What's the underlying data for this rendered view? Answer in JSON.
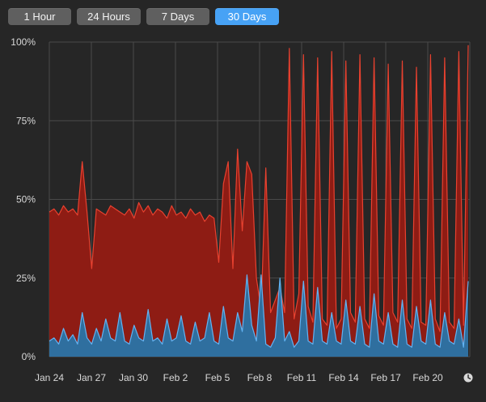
{
  "range_buttons": [
    {
      "label": "1 Hour",
      "active": false
    },
    {
      "label": "24 Hours",
      "active": false
    },
    {
      "label": "7 Days",
      "active": false
    },
    {
      "label": "30 Days",
      "active": true
    }
  ],
  "colors": {
    "background": "#262626",
    "grid": "#4a4a4a",
    "red_fill": "#8e1c14",
    "red_line": "#e8412f",
    "blue_fill": "#2f6f9f",
    "blue_line": "#62b3f2",
    "accent": "#47a2f5"
  },
  "clock_icon": "clock-icon",
  "chart_data": {
    "type": "area",
    "title": "",
    "xlabel": "",
    "ylabel": "",
    "ylim": [
      0,
      100
    ],
    "x_ticks": [
      "Jan 24",
      "Jan 27",
      "Jan 30",
      "Feb 2",
      "Feb 5",
      "Feb 8",
      "Feb 11",
      "Feb 14",
      "Feb 17",
      "Feb 20"
    ],
    "y_ticks": [
      "0%",
      "25%",
      "50%",
      "75%",
      "100%"
    ],
    "grid": true,
    "legend": "none",
    "series": [
      {
        "color": "#e8412f",
        "values": [
          46,
          47,
          45,
          48,
          46,
          47,
          45,
          62,
          46,
          28,
          47,
          46,
          45,
          48,
          47,
          46,
          45,
          47,
          44,
          49,
          46,
          48,
          45,
          47,
          46,
          44,
          48,
          45,
          46,
          44,
          47,
          45,
          46,
          43,
          45,
          44,
          30,
          55,
          62,
          28,
          66,
          40,
          62,
          58,
          25,
          15,
          60,
          14,
          18,
          22,
          14,
          98,
          12,
          20,
          96,
          16,
          11,
          95,
          12,
          10,
          97,
          9,
          12,
          94,
          14,
          11,
          96,
          12,
          9,
          95,
          13,
          10,
          93,
          14,
          11,
          94,
          12,
          9,
          92,
          11,
          10,
          96,
          12,
          8,
          95,
          11,
          9,
          97,
          10,
          99
        ]
      },
      {
        "color": "#62b3f2",
        "values": [
          5,
          6,
          4,
          9,
          5,
          7,
          4,
          14,
          6,
          4,
          9,
          5,
          12,
          6,
          5,
          14,
          5,
          4,
          10,
          6,
          5,
          15,
          5,
          6,
          4,
          12,
          5,
          6,
          13,
          5,
          4,
          11,
          5,
          6,
          14,
          5,
          4,
          16,
          6,
          5,
          14,
          8,
          26,
          10,
          5,
          26,
          4,
          3,
          6,
          25,
          5,
          8,
          3,
          5,
          24,
          5,
          4,
          22,
          5,
          4,
          14,
          5,
          4,
          18,
          5,
          4,
          16,
          4,
          3,
          20,
          5,
          4,
          14,
          4,
          3,
          18,
          4,
          3,
          16,
          5,
          4,
          18,
          4,
          3,
          14,
          5,
          4,
          12,
          3,
          24
        ]
      }
    ]
  }
}
